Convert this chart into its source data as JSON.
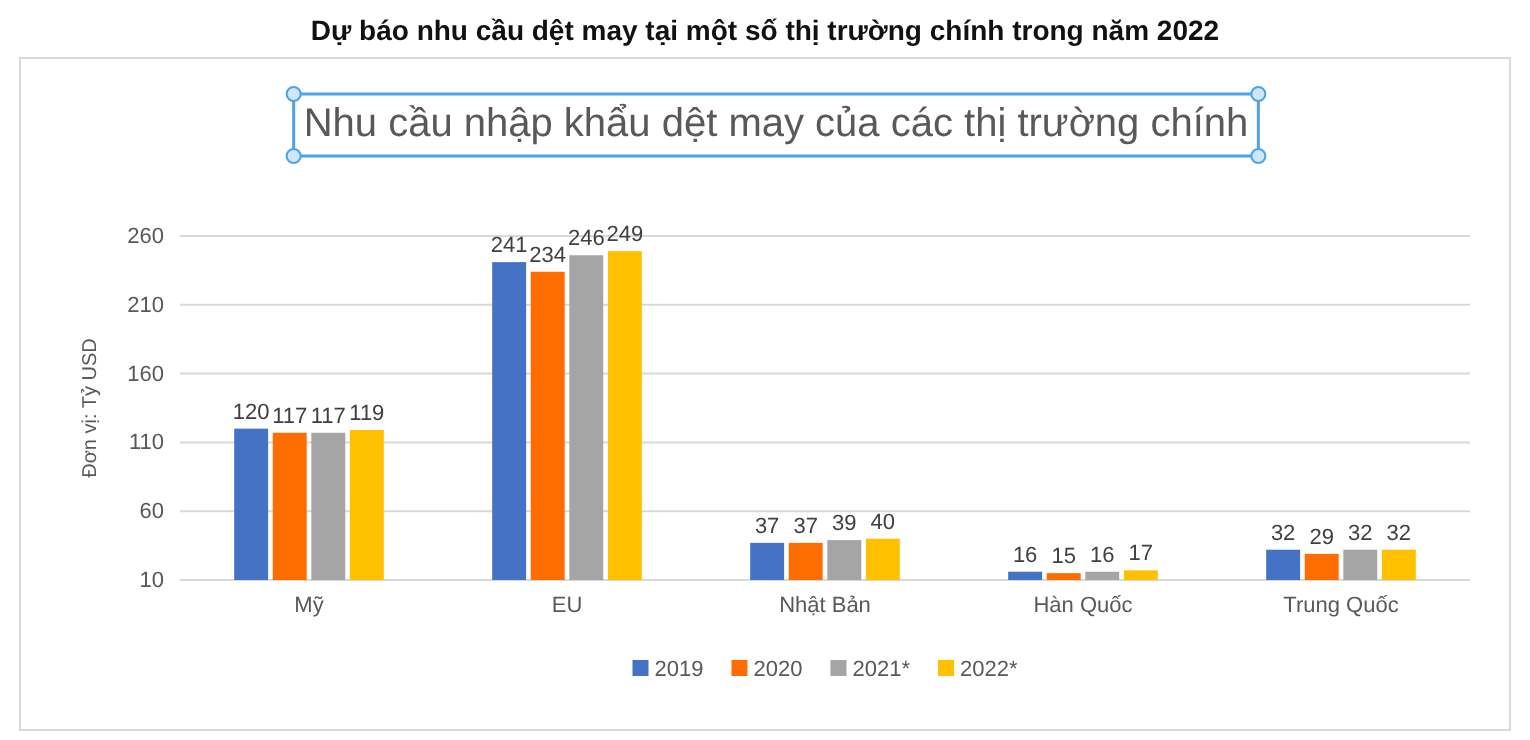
{
  "chart_data": {
    "type": "bar",
    "title": "Dự báo nhu cầu dệt may tại một số thị trường chính trong năm 2022",
    "subtitle": "Nhu cầu nhập khẩu dệt may của các thị trường chính",
    "ylabel": "Đơn vị: Tỷ USD",
    "categories": [
      "Mỹ",
      "EU",
      "Nhật Bản",
      "Hàn Quốc",
      "Trung Quốc"
    ],
    "series": [
      {
        "name": "2019",
        "color": "#4472c4",
        "values": [
          120,
          241,
          37,
          16,
          32
        ]
      },
      {
        "name": "2020",
        "color": "#ff6d00",
        "values": [
          117,
          234,
          37,
          15,
          29
        ]
      },
      {
        "name": "2021*",
        "color": "#a5a5a5",
        "values": [
          117,
          246,
          39,
          16,
          32
        ]
      },
      {
        "name": "2022*",
        "color": "#ffc000",
        "values": [
          119,
          249,
          40,
          17,
          32
        ]
      }
    ],
    "ylim": [
      10,
      260
    ],
    "yticks": [
      10,
      60,
      110,
      160,
      210,
      260
    ],
    "grid": "y",
    "legend": "bottom",
    "data_labels": true
  }
}
